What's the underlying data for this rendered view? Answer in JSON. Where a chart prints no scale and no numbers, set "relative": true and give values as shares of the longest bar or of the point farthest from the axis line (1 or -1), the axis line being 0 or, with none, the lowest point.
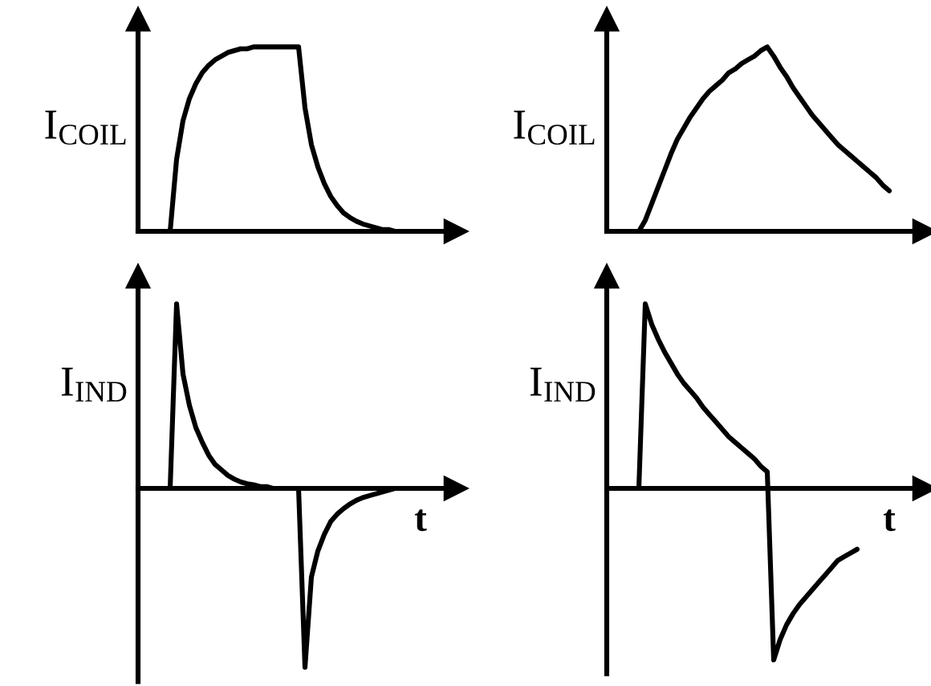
{
  "chart_data": [
    {
      "type": "line",
      "ylabel": "I$_{COIL}$",
      "relative": true,
      "tick_labels": false,
      "line_style": "solid",
      "color": "#000000",
      "categories": [
        null,
        null,
        null,
        null,
        null,
        null,
        null,
        null,
        null,
        null,
        null,
        null,
        null,
        null,
        null,
        null,
        null,
        null,
        null,
        null,
        null,
        null,
        null,
        null,
        null,
        null,
        null,
        null,
        null,
        null,
        null,
        null,
        null,
        null,
        null,
        null,
        null,
        null,
        null,
        null,
        null,
        null,
        null,
        null,
        null,
        null
      ],
      "values": [
        0,
        0,
        0,
        0,
        0,
        0,
        0.39,
        0.6,
        0.72,
        0.8,
        0.86,
        0.9,
        0.93,
        0.95,
        0.97,
        0.98,
        0.99,
        0.99,
        1,
        1,
        1,
        1,
        1,
        1,
        1,
        1,
        0.67,
        0.47,
        0.35,
        0.26,
        0.19,
        0.14,
        0.1,
        0.075,
        0.055,
        0.04,
        0.03,
        0.02,
        0.01,
        0.01,
        0,
        0,
        0,
        0,
        0,
        0
      ]
    },
    {
      "type": "line",
      "ylabel": "I$_{COIL}$",
      "relative": true,
      "tick_labels": false,
      "line_style": "solid",
      "color": "#000000",
      "categories": [
        null,
        null,
        null,
        null,
        null,
        null,
        null,
        null,
        null,
        null,
        null,
        null,
        null,
        null,
        null,
        null,
        null,
        null,
        null,
        null,
        null,
        null,
        null,
        null,
        null,
        null,
        null,
        null,
        null,
        null,
        null,
        null,
        null,
        null,
        null,
        null,
        null,
        null,
        null,
        null,
        null,
        null,
        null,
        null,
        null
      ],
      "values": [
        0,
        0,
        0,
        0,
        0,
        0,
        0.06,
        0.15,
        0.24,
        0.33,
        0.42,
        0.5,
        0.56,
        0.62,
        0.67,
        0.72,
        0.76,
        0.79,
        0.82,
        0.86,
        0.88,
        0.91,
        0.93,
        0.95,
        0.98,
        1,
        0.95,
        0.89,
        0.84,
        0.78,
        0.73,
        0.68,
        0.63,
        0.59,
        0.55,
        0.51,
        0.47,
        0.44,
        0.41,
        0.38,
        0.35,
        0.32,
        0.29,
        0.25,
        0.22
      ]
    },
    {
      "type": "line",
      "ylabel": "I$_{IND}$",
      "xlabel": "t",
      "relative": true,
      "tick_labels": false,
      "line_style": "solid",
      "color": "#000000",
      "categories": [
        null,
        null,
        null,
        null,
        null,
        null,
        null,
        null,
        null,
        null,
        null,
        null,
        null,
        null,
        null,
        null,
        null,
        null,
        null,
        null,
        null,
        null,
        null,
        null,
        null,
        null,
        null,
        null,
        null,
        null,
        null,
        null,
        null,
        null,
        null,
        null,
        null,
        null,
        null,
        null,
        null
      ],
      "values": [
        0,
        0,
        0,
        0,
        0,
        0,
        1,
        0.62,
        0.45,
        0.33,
        0.25,
        0.18,
        0.13,
        0.1,
        0.07,
        0.05,
        0.035,
        0.025,
        0.02,
        0.01,
        0.01,
        0,
        0,
        0,
        0,
        0,
        -0.97,
        -0.48,
        -0.34,
        -0.25,
        -0.18,
        -0.14,
        -0.11,
        -0.085,
        -0.065,
        -0.05,
        -0.04,
        -0.03,
        -0.02,
        -0.01,
        0
      ]
    },
    {
      "type": "line",
      "ylabel": "I$_{IND}$",
      "xlabel": "t",
      "relative": true,
      "tick_labels": false,
      "line_style": "solid",
      "color": "#000000",
      "categories": [
        null,
        null,
        null,
        null,
        null,
        null,
        null,
        null,
        null,
        null,
        null,
        null,
        null,
        null,
        null,
        null,
        null,
        null,
        null,
        null,
        null,
        null,
        null,
        null,
        null,
        null,
        null,
        null,
        null,
        null,
        null,
        null,
        null,
        null,
        null,
        null,
        null,
        null,
        null,
        null
      ],
      "values": [
        0,
        0,
        0,
        0,
        0,
        0,
        1,
        0.89,
        0.81,
        0.74,
        0.68,
        0.62,
        0.57,
        0.53,
        0.49,
        0.44,
        0.4,
        0.36,
        0.32,
        0.28,
        0.25,
        0.22,
        0.19,
        0.16,
        0.12,
        0.09,
        -0.93,
        -0.82,
        -0.74,
        -0.68,
        -0.63,
        -0.59,
        -0.55,
        -0.51,
        -0.47,
        -0.43,
        -0.39,
        -0.37,
        -0.35,
        -0.33
      ]
    }
  ]
}
